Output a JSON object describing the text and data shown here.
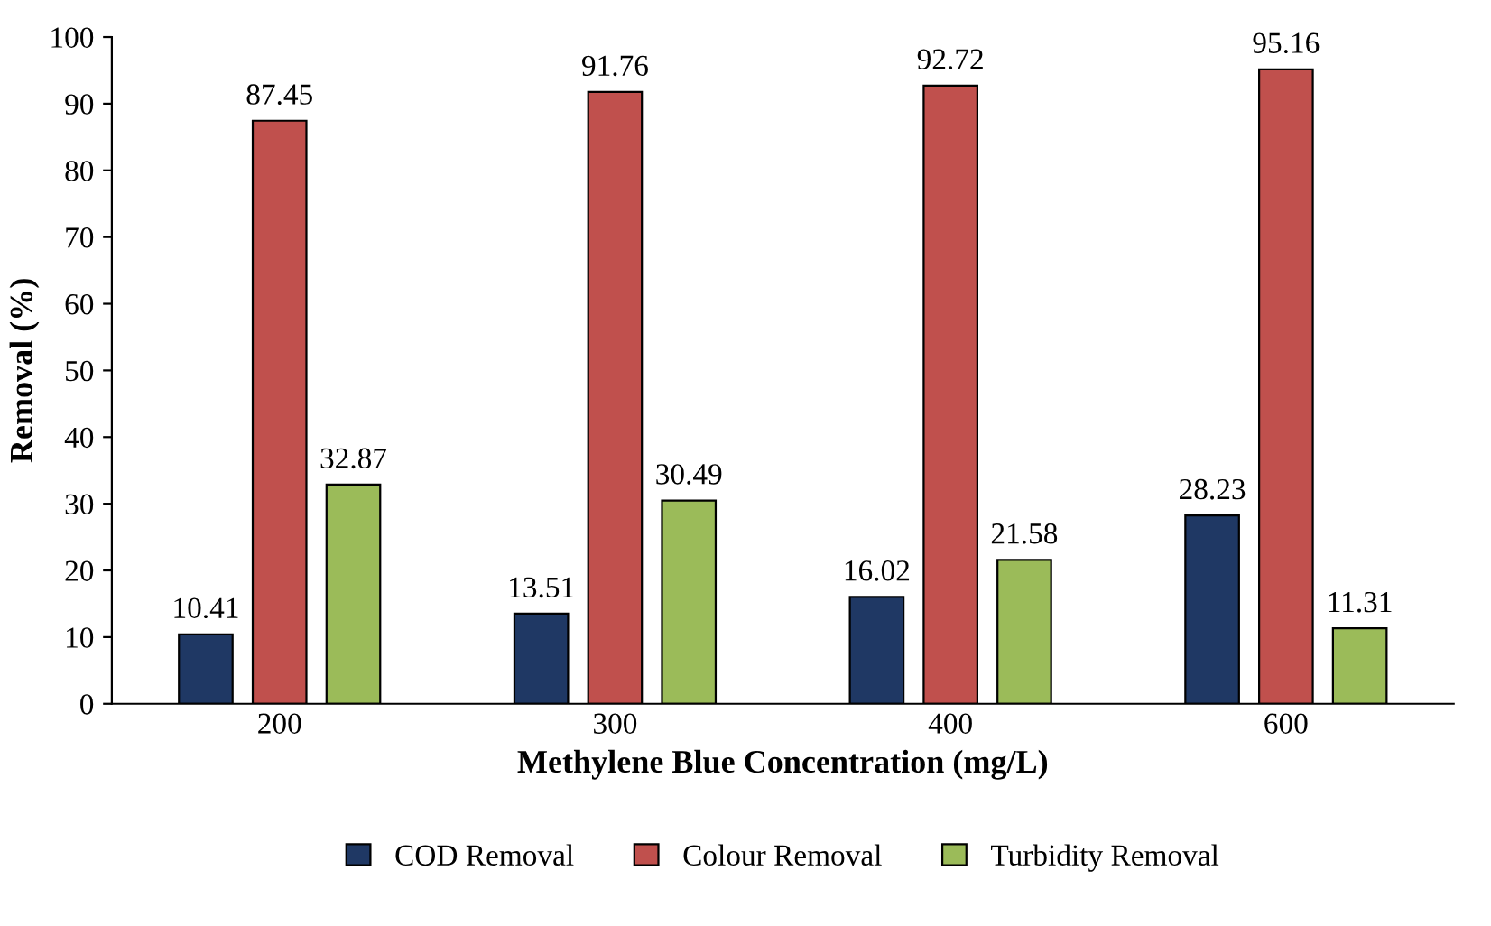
{
  "chart_data": {
    "type": "bar",
    "xlabel": "Methylene Blue Concentration (mg/L)",
    "ylabel": "Removal (%)",
    "categories": [
      "200",
      "300",
      "400",
      "600"
    ],
    "series": [
      {
        "name": "COD Removal",
        "color": "#1f3864",
        "values": [
          10.41,
          13.51,
          16.02,
          28.23
        ]
      },
      {
        "name": "Colour Removal",
        "color": "#c0504d",
        "values": [
          87.45,
          91.76,
          92.72,
          95.16
        ]
      },
      {
        "name": "Turbidity Removal",
        "color": "#9bbb59",
        "values": [
          32.87,
          30.49,
          21.58,
          11.31
        ]
      }
    ],
    "ylim": [
      0,
      100
    ],
    "yticks": [
      0,
      10,
      20,
      30,
      40,
      50,
      60,
      70,
      80,
      90,
      100
    ],
    "data_labels": true,
    "grid": false,
    "legend": "bottom"
  }
}
